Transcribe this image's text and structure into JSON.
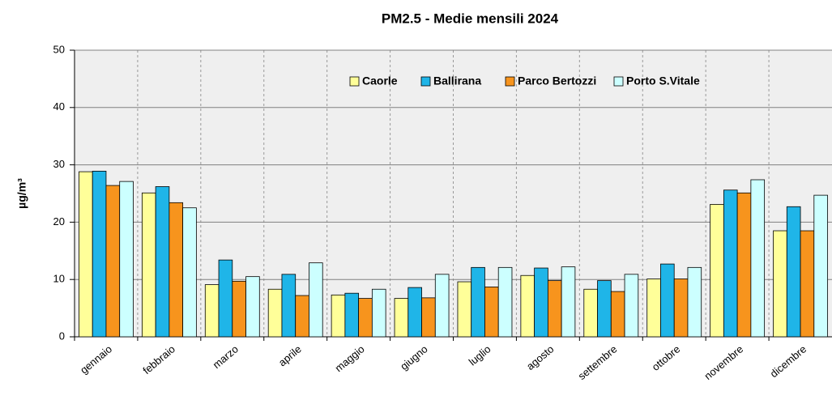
{
  "chart_data": {
    "type": "bar",
    "title": "PM2.5 - Medie mensili 2024",
    "y_label": "µg/m³",
    "categories": [
      "gennaio",
      "febbraio",
      "marzo",
      "aprile",
      "maggio",
      "giugno",
      "luglio",
      "agosto",
      "settembre",
      "ottobre",
      "novembre",
      "dicembre"
    ],
    "series": [
      {
        "name": "Caorle",
        "color": "#ffff99",
        "values": [
          28.8,
          25.1,
          9.1,
          8.3,
          7.3,
          6.7,
          9.6,
          10.7,
          8.3,
          10.1,
          23.1,
          18.5
        ]
      },
      {
        "name": "Ballirana",
        "color": "#1fb5e8",
        "values": [
          28.9,
          26.2,
          13.4,
          10.9,
          7.6,
          8.6,
          12.1,
          12.0,
          9.8,
          12.7,
          25.6,
          22.7
        ]
      },
      {
        "name": "Parco Bertozzi",
        "color": "#f7941d",
        "values": [
          26.4,
          23.4,
          9.7,
          7.2,
          6.7,
          6.8,
          8.7,
          9.8,
          7.9,
          10.1,
          25.1,
          18.5
        ]
      },
      {
        "name": "Porto S.Vitale",
        "color": "#ccffff",
        "values": [
          27.1,
          22.5,
          10.5,
          12.9,
          8.3,
          10.9,
          12.1,
          12.2,
          10.9,
          12.1,
          27.4,
          24.7
        ]
      }
    ],
    "ylim": [
      0,
      50
    ],
    "yticks": [
      0,
      10,
      20,
      30,
      40,
      50
    ],
    "grid": true,
    "legend": "top-right"
  }
}
